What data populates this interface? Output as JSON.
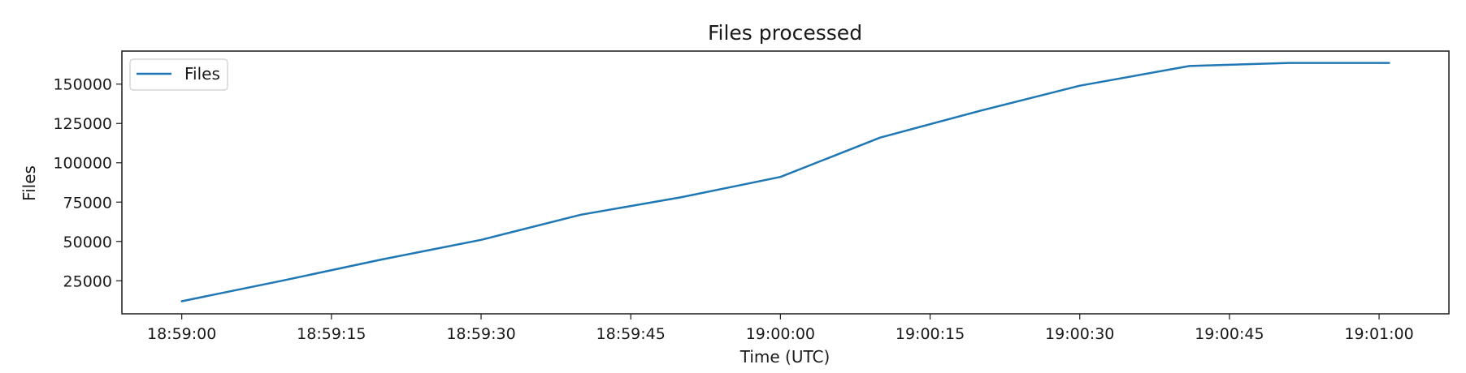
{
  "chart_data": {
    "type": "line",
    "title": "Files processed",
    "xlabel": "Time (UTC)",
    "ylabel": "Files",
    "x_ticks": [
      "18:59:00",
      "18:59:15",
      "18:59:30",
      "18:59:45",
      "19:00:00",
      "19:00:15",
      "19:00:30",
      "19:00:45",
      "19:01:00"
    ],
    "y_ticks": [
      25000,
      50000,
      75000,
      100000,
      125000,
      150000
    ],
    "xlim": [
      "18:58:54",
      "19:01:07"
    ],
    "ylim": [
      4000,
      171000
    ],
    "grid": false,
    "legend": "upper left",
    "series": [
      {
        "name": "Files",
        "color": "#1f77b4",
        "points": [
          {
            "x": "18:59:00",
            "y": 12000
          },
          {
            "x": "18:59:10",
            "y": 25000
          },
          {
            "x": "18:59:20",
            "y": 38500
          },
          {
            "x": "18:59:30",
            "y": 51000
          },
          {
            "x": "18:59:40",
            "y": 67000
          },
          {
            "x": "18:59:50",
            "y": 78000
          },
          {
            "x": "19:00:00",
            "y": 91000
          },
          {
            "x": "19:00:10",
            "y": 116000
          },
          {
            "x": "19:00:20",
            "y": 133000
          },
          {
            "x": "19:00:30",
            "y": 149000
          },
          {
            "x": "19:00:41",
            "y": 161500
          },
          {
            "x": "19:00:51",
            "y": 163500
          },
          {
            "x": "19:01:01",
            "y": 163500
          }
        ]
      }
    ]
  }
}
